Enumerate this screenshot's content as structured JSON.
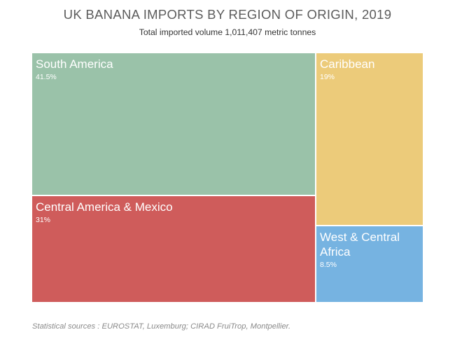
{
  "chart": {
    "title": "UK BANANA IMPORTS BY REGION OF ORIGIN, 2019",
    "subtitle": "Total imported volume 1,011,407 metric tonnes",
    "source": "Statistical sources : EUROSTAT, Luxemburg; CIRAD FruiTrop, Montpellier."
  },
  "chart_data": {
    "type": "treemap",
    "title": "UK BANANA IMPORTS BY REGION OF ORIGIN, 2019",
    "subtitle": "Total imported volume 1,011,407 metric tonnes",
    "unit": "%",
    "total_volume_tonnes": 1011407,
    "items": [
      {
        "name": "South America",
        "label": "41.5%",
        "value": 41.5,
        "color": "#9ac2a9"
      },
      {
        "name": "Central America & Mexico",
        "label": "31%",
        "value": 31,
        "color": "#cf5c5b"
      },
      {
        "name": "Caribbean",
        "label": "19%",
        "value": 19,
        "color": "#eccb7a"
      },
      {
        "name": "West & Central Africa",
        "label": "8.5%",
        "value": 8.5,
        "color": "#76b3e1"
      }
    ]
  }
}
